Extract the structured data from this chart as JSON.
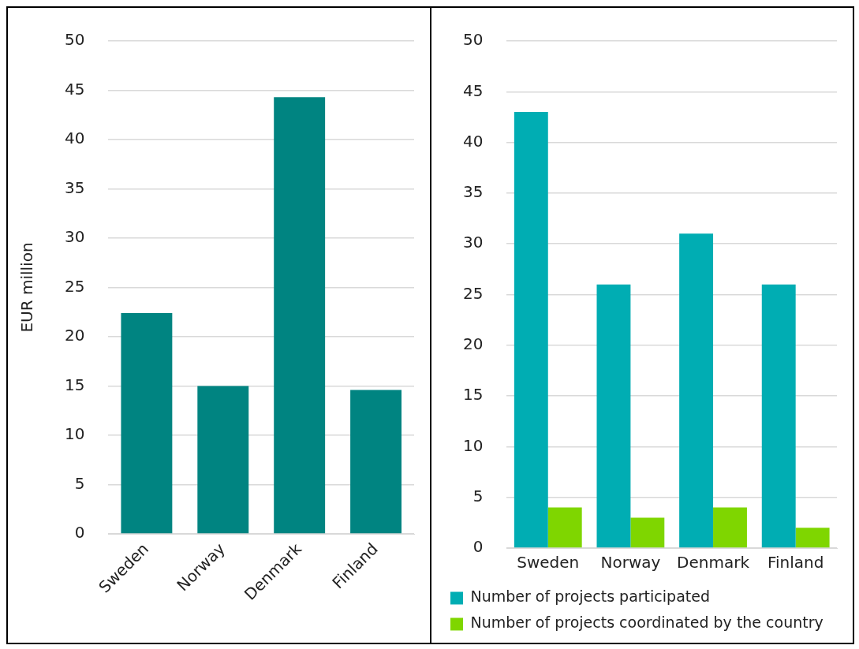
{
  "chart_data": [
    {
      "type": "bar",
      "ylabel": "EUR million",
      "categories": [
        "Sweden",
        "Norway",
        "Denmark",
        "Finland"
      ],
      "values": [
        22.4,
        15.0,
        44.3,
        14.6
      ],
      "color": "#008481",
      "ylim": [
        0,
        50
      ],
      "yticks": [
        0,
        5,
        10,
        15,
        20,
        25,
        30,
        35,
        40,
        45,
        50
      ],
      "grid": "y"
    },
    {
      "type": "bar",
      "categories": [
        "Sweden",
        "Norway",
        "Denmark",
        "Finland"
      ],
      "series": [
        {
          "name": "Number of projects participated",
          "color": "#00adb3",
          "values": [
            43,
            26,
            31,
            26
          ]
        },
        {
          "name": "Number of projects coordinated by the country",
          "color": "#7fd600",
          "values": [
            4,
            3,
            4,
            2
          ]
        }
      ],
      "ylim": [
        0,
        50
      ],
      "yticks": [
        0,
        5,
        10,
        15,
        20,
        25,
        30,
        35,
        40,
        45,
        50
      ],
      "grid": "y",
      "legend": "bottom"
    }
  ]
}
